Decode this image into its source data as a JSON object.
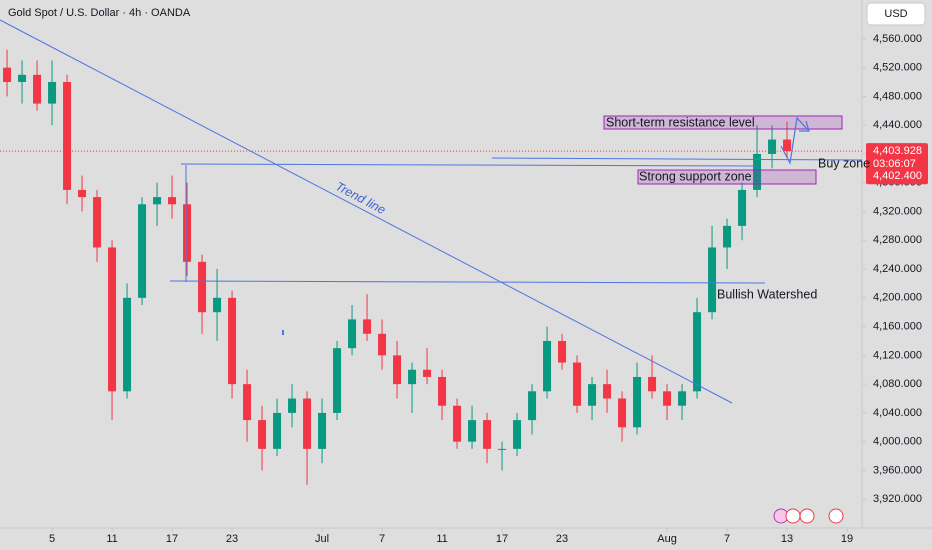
{
  "chart_data": {
    "type": "candlestick",
    "title": "Gold Spot / U.S. Dollar · 4h · OANDA",
    "currency": "USD",
    "up_color": "#089981",
    "down_color": "#f23645",
    "x": [
      -3,
      -2,
      -1,
      0,
      1,
      2,
      3,
      4,
      5,
      6,
      7,
      8,
      9,
      10,
      11,
      12,
      13,
      14,
      15,
      16,
      17,
      18,
      19,
      20,
      21,
      22,
      23,
      24,
      25,
      26,
      27,
      28,
      29,
      30,
      31,
      32,
      33,
      34,
      35,
      36,
      37,
      38,
      39,
      40,
      41,
      42,
      43,
      44,
      45,
      46,
      47,
      48,
      49
    ],
    "open": [
      4520,
      4500,
      4510,
      4470,
      4500,
      4350,
      4340,
      4270,
      4070,
      4200,
      4330,
      4340,
      4330,
      4250,
      4180,
      4200,
      4080,
      4030,
      3990,
      4040,
      4060,
      3990,
      4040,
      4130,
      4170,
      4150,
      4120,
      4080,
      4100,
      4090,
      4050,
      4000,
      4030,
      3990,
      3990,
      4030,
      4070,
      4140,
      4110,
      4050,
      4080,
      4060,
      4020,
      4090,
      4070,
      4050,
      4070,
      4180,
      4270,
      4300,
      4350,
      4400,
      4420
    ],
    "high": [
      4545,
      4530,
      4530,
      4530,
      4510,
      4370,
      4350,
      4280,
      4220,
      4340,
      4360,
      4370,
      4360,
      4260,
      4240,
      4210,
      4100,
      4050,
      4060,
      4080,
      4070,
      4060,
      4140,
      4190,
      4205,
      4170,
      4140,
      4110,
      4130,
      4100,
      4060,
      4050,
      4040,
      4000,
      4040,
      4080,
      4160,
      4150,
      4120,
      4090,
      4100,
      4070,
      4110,
      4120,
      4080,
      4080,
      4200,
      4300,
      4310,
      4360,
      4440,
      4440,
      4445
    ],
    "low": [
      4480,
      4470,
      4460,
      4440,
      4330,
      4320,
      4250,
      4030,
      4060,
      4190,
      4300,
      4310,
      4230,
      4150,
      4140,
      4060,
      4000,
      3960,
      3980,
      4020,
      3940,
      3970,
      4030,
      4120,
      4140,
      4100,
      4060,
      4040,
      4080,
      4030,
      3990,
      3990,
      3970,
      3960,
      3980,
      4010,
      4060,
      4100,
      4040,
      4030,
      4040,
      4000,
      4010,
      4060,
      4030,
      4030,
      4060,
      4170,
      4240,
      4280,
      4340,
      4380,
      4395
    ],
    "close": [
      4500,
      4510,
      4470,
      4500,
      4350,
      4340,
      4270,
      4070,
      4200,
      4330,
      4340,
      4330,
      4250,
      4180,
      4200,
      4080,
      4030,
      3990,
      4040,
      4060,
      3990,
      4040,
      4130,
      4170,
      4150,
      4120,
      4080,
      4100,
      4090,
      4050,
      4000,
      4030,
      3990,
      3990,
      4030,
      4070,
      4140,
      4110,
      4050,
      4080,
      4060,
      4020,
      4090,
      4070,
      4050,
      4070,
      4180,
      4270,
      4300,
      4350,
      4400,
      4420,
      4404
    ],
    "xlim": [
      -3.47,
      53.73
    ],
    "xticks": [
      {
        "value": 0,
        "label": "5"
      },
      {
        "value": 4,
        "label": "11"
      },
      {
        "value": 8,
        "label": "17"
      },
      {
        "value": 12,
        "label": "23"
      },
      {
        "value": 18,
        "label": "Jul"
      },
      {
        "value": 22,
        "label": "7"
      },
      {
        "value": 26,
        "label": "11"
      },
      {
        "value": 30,
        "label": "17"
      },
      {
        "value": 34,
        "label": "23"
      },
      {
        "value": 41,
        "label": "Aug"
      },
      {
        "value": 45,
        "label": "7"
      },
      {
        "value": 49,
        "label": "13"
      },
      {
        "value": 53,
        "label": "19"
      }
    ],
    "ylim": [
      3880,
      4614
    ],
    "yticks": [
      {
        "value": 3920,
        "label": "3,920.000"
      },
      {
        "value": 3960,
        "label": "3,960.000"
      },
      {
        "value": 4000,
        "label": "4,000.000"
      },
      {
        "value": 4040,
        "label": "4,040.000"
      },
      {
        "value": 4080,
        "label": "4,080.000"
      },
      {
        "value": 4120,
        "label": "4,120.000"
      },
      {
        "value": 4160,
        "label": "4,160.000"
      },
      {
        "value": 4200,
        "label": "4,200.000"
      },
      {
        "value": 4240,
        "label": "4,240.000"
      },
      {
        "value": 4280,
        "label": "4,280.000"
      },
      {
        "value": 4320,
        "label": "4,320.000"
      },
      {
        "value": 4360,
        "label": "4,360.000"
      },
      {
        "value": 4400,
        "label": "4,400.000"
      },
      {
        "value": 4440,
        "label": "4,440.000"
      },
      {
        "value": 4480,
        "label": "4,480.000"
      },
      {
        "value": 4520,
        "label": "4,520.000"
      },
      {
        "value": 4560,
        "label": "4,560.000"
      }
    ],
    "last_price": {
      "value": 4403.928,
      "label": "4,403.928"
    },
    "countdown": "03:06:07",
    "bid_price": {
      "value": 4402.4,
      "label": "4,402.400"
    },
    "annotations": [
      "Trend line",
      "Short-term resistance level",
      "Buy zone",
      "Strong support zone",
      "Bullish Watershed"
    ]
  }
}
